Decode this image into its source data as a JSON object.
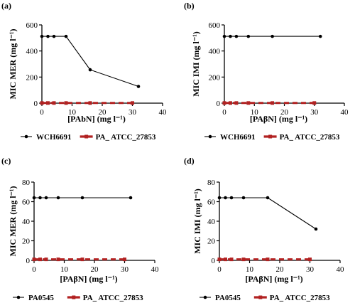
{
  "chart_data": [
    {
      "type": "line",
      "panel_label": "(a)",
      "ylabel": "MIC MER (mg l⁻¹)",
      "xlabel": "[PAbN] (mg l⁻¹)",
      "xlim": [
        0,
        40
      ],
      "ylim": [
        0,
        600
      ],
      "xticks": [
        0,
        10,
        20,
        30,
        40
      ],
      "yticks": [
        0,
        200,
        400,
        600
      ],
      "series": [
        {
          "name": "WCH6691",
          "color": "#000000",
          "style": "solid-dot",
          "x": [
            0,
            2,
            4,
            8,
            16,
            32
          ],
          "y": [
            512,
            512,
            512,
            512,
            256,
            128
          ]
        },
        {
          "name": "PA_ ATCC_27853",
          "color": "#b22222",
          "style": "dashed-square",
          "x": [
            0,
            2,
            4,
            8,
            16,
            30
          ],
          "y": [
            1,
            1,
            1,
            1,
            1,
            1
          ]
        }
      ]
    },
    {
      "type": "line",
      "panel_label": "(b)",
      "ylabel": "MIC IMI (mg l⁻¹)",
      "xlabel": "[PAβN] (mg l⁻¹)",
      "xlim": [
        0,
        40
      ],
      "ylim": [
        0,
        600
      ],
      "xticks": [
        0,
        10,
        20,
        30,
        40
      ],
      "yticks": [
        0,
        200,
        400,
        600
      ],
      "series": [
        {
          "name": "WCH6691",
          "color": "#000000",
          "style": "solid-dot",
          "x": [
            0,
            2,
            4,
            8,
            16,
            32
          ],
          "y": [
            512,
            512,
            512,
            512,
            512,
            512
          ]
        },
        {
          "name": "PA_ ATCC_27853",
          "color": "#b22222",
          "style": "dashed-square",
          "x": [
            0,
            2,
            4,
            8,
            16,
            30
          ],
          "y": [
            1,
            1,
            1,
            1,
            1,
            1
          ]
        }
      ]
    },
    {
      "type": "line",
      "panel_label": "(c)",
      "ylabel": "MIC MER (mg l⁻¹)",
      "xlabel": "[PAβN] (mg l⁻¹)",
      "xlim": [
        0,
        40
      ],
      "ylim": [
        0,
        80
      ],
      "xticks": [
        0,
        10,
        20,
        30,
        40
      ],
      "yticks": [
        0,
        20,
        40,
        60,
        80
      ],
      "series": [
        {
          "name": "PA0545",
          "color": "#000000",
          "style": "solid-dot",
          "x": [
            0,
            2,
            4,
            8,
            16,
            32
          ],
          "y": [
            64,
            64,
            64,
            64,
            64,
            64
          ]
        },
        {
          "name": "PA_ ATCC_27853",
          "color": "#b22222",
          "style": "dashed-square",
          "x": [
            0,
            2,
            4,
            8,
            16,
            30
          ],
          "y": [
            1,
            1,
            1,
            1,
            1,
            1
          ]
        }
      ]
    },
    {
      "type": "line",
      "panel_label": "(d)",
      "ylabel": "MIC IMI (mg l⁻¹)",
      "xlabel": "[PAβN] (mg l⁻¹)",
      "xlim": [
        0,
        40
      ],
      "ylim": [
        0,
        80
      ],
      "xticks": [
        0,
        10,
        20,
        30,
        40
      ],
      "yticks": [
        0,
        20,
        40,
        60,
        80
      ],
      "series": [
        {
          "name": "PA0545",
          "color": "#000000",
          "style": "solid-dot",
          "x": [
            0,
            2,
            4,
            8,
            16,
            32
          ],
          "y": [
            64,
            64,
            64,
            64,
            64,
            32
          ]
        },
        {
          "name": "PA_ ATCC_27853",
          "color": "#b22222",
          "style": "dashed-square",
          "x": [
            0,
            2,
            4,
            8,
            16,
            30
          ],
          "y": [
            1,
            1,
            1,
            1,
            1,
            1
          ]
        }
      ]
    }
  ]
}
